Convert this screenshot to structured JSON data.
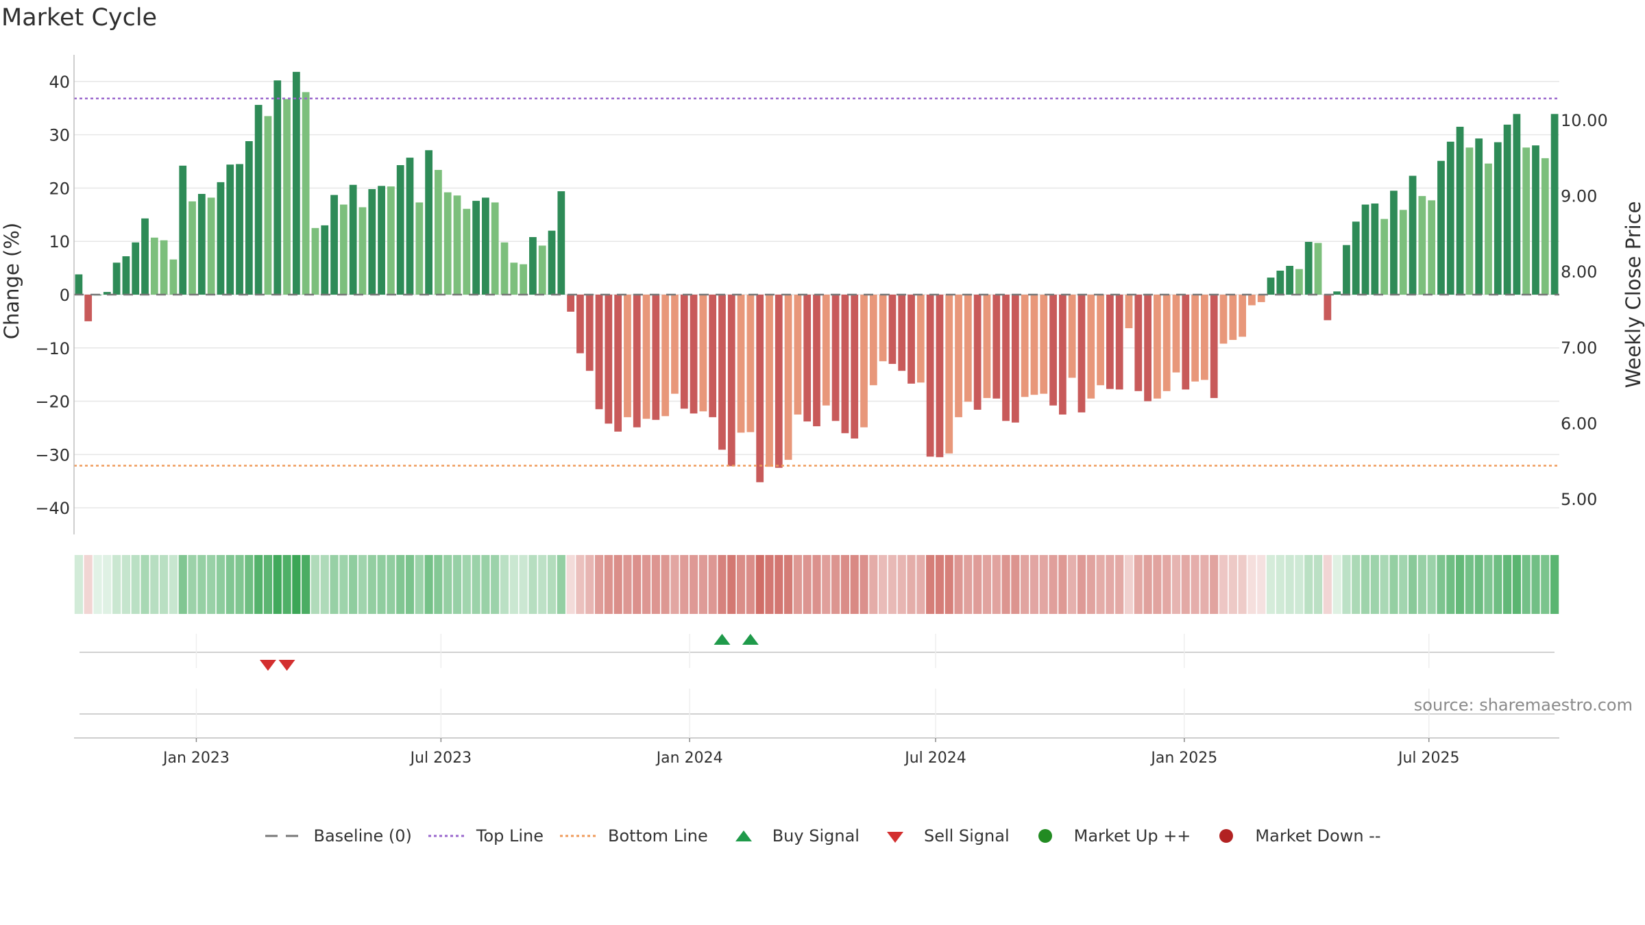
{
  "chart_data": {
    "type": "bar",
    "title": "Market Cycle",
    "ylabel": "Change (%)",
    "y2label": "Weekly Close Price",
    "ylim": [
      -45,
      45
    ],
    "yticks": [
      40,
      30,
      20,
      10,
      0,
      -10,
      -20,
      -30,
      -40
    ],
    "ytick_labels": [
      "40",
      "30",
      "20",
      "10",
      "0",
      "−10",
      "−20",
      "−30",
      "−40"
    ],
    "y2ticks": [
      10.0,
      9.0,
      8.0,
      7.0,
      6.0,
      5.0
    ],
    "y2tick_labels": [
      "10.00",
      "9.00",
      "8.00",
      "7.00",
      "6.00",
      "5.00"
    ],
    "y2lim": [
      4.9,
      10.1
    ],
    "x_start": "2022-10-06",
    "week_days": 7,
    "xticks": [
      {
        "date": "2023-01-01",
        "label": "Jan 2023"
      },
      {
        "date": "2023-07-01",
        "label": "Jul 2023"
      },
      {
        "date": "2024-01-01",
        "label": "Jan 2024"
      },
      {
        "date": "2024-07-01",
        "label": "Jul 2024"
      },
      {
        "date": "2025-01-01",
        "label": "Jan 2025"
      },
      {
        "date": "2025-07-01",
        "label": "Jul 2025"
      }
    ],
    "values": [
      3.8,
      -5.0,
      0,
      0.5,
      6.0,
      7.2,
      9.8,
      14.3,
      10.7,
      10.2,
      6.6,
      24.2,
      17.5,
      18.9,
      18.2,
      21.1,
      24.4,
      24.5,
      28.8,
      35.6,
      33.5,
      40.2,
      36.7,
      41.8,
      38.0,
      12.5,
      13.0,
      18.7,
      16.9,
      20.6,
      16.4,
      19.8,
      20.4,
      20.3,
      24.3,
      25.7,
      17.3,
      27.1,
      23.4,
      19.2,
      18.6,
      16.1,
      17.6,
      18.2,
      17.3,
      9.8,
      6.0,
      5.7,
      10.8,
      9.2,
      12.0,
      19.4,
      -3.2,
      -11.0,
      -14.3,
      -21.5,
      -24.2,
      -25.7,
      -23.0,
      -24.9,
      -23.3,
      -23.5,
      -22.8,
      -18.6,
      -21.4,
      -22.3,
      -21.9,
      -23.0,
      -29.1,
      -32.2,
      -25.9,
      -25.8,
      -35.2,
      -32.3,
      -32.5,
      -31.0,
      -22.5,
      -23.8,
      -24.7,
      -20.8,
      -23.7,
      -26.0,
      -27.0,
      -24.9,
      -17.0,
      -12.5,
      -13.0,
      -14.3,
      -16.7,
      -16.5,
      -30.4,
      -30.5,
      -29.8,
      -23.0,
      -20.1,
      -21.6,
      -19.4,
      -19.5,
      -23.7,
      -24.0,
      -19.2,
      -18.8,
      -18.6,
      -20.8,
      -22.5,
      -15.6,
      -22.1,
      -19.5,
      -17.0,
      -17.7,
      -17.8,
      -6.3,
      -18.1,
      -20.0,
      -19.5,
      -18.1,
      -14.6,
      -17.8,
      -16.3,
      -16.0,
      -19.4,
      -9.2,
      -8.5,
      -7.9,
      -2.0,
      -1.4,
      3.2,
      4.5,
      5.4,
      4.8,
      9.9,
      9.7,
      -4.8,
      0.6,
      9.3,
      13.7,
      16.9,
      17.1,
      14.2,
      19.5,
      15.9,
      22.3,
      18.5,
      17.7,
      25.1,
      28.7,
      31.5,
      27.6,
      29.3,
      24.6,
      28.6,
      31.9,
      33.9,
      27.6,
      28.0,
      25.6,
      33.9
    ],
    "top_line": 36.8,
    "bottom_line": -32.1,
    "buy_signals": [
      {
        "date": "2024-01-25"
      },
      {
        "date": "2024-02-15"
      }
    ],
    "sell_signals": [
      {
        "date": "2023-02-23"
      },
      {
        "date": "2023-03-09"
      }
    ],
    "colors": {
      "up_strong": "#2e8b57",
      "up_weak": "#7cbf7c",
      "down_strong": "#c85a5a",
      "down_weak": "#e8977a",
      "top_line": "#9966cc",
      "bottom_line": "#ef9a5a",
      "buy": "#1f9a4a",
      "sell": "#d32f2f",
      "market_up": "#228b22",
      "market_down": "#b22222",
      "baseline": "#777777"
    },
    "legend_position": "bottom-center",
    "grid": true,
    "legend": [
      {
        "key": "baseline",
        "label": "Baseline (0)"
      },
      {
        "key": "top",
        "label": "Top Line"
      },
      {
        "key": "bottom",
        "label": "Bottom Line"
      },
      {
        "key": "buy",
        "label": "Buy Signal"
      },
      {
        "key": "sell",
        "label": "Sell Signal"
      },
      {
        "key": "up",
        "label": "Market Up ++"
      },
      {
        "key": "down",
        "label": "Market Down --"
      }
    ],
    "source": "source: sharemaestro.com"
  }
}
